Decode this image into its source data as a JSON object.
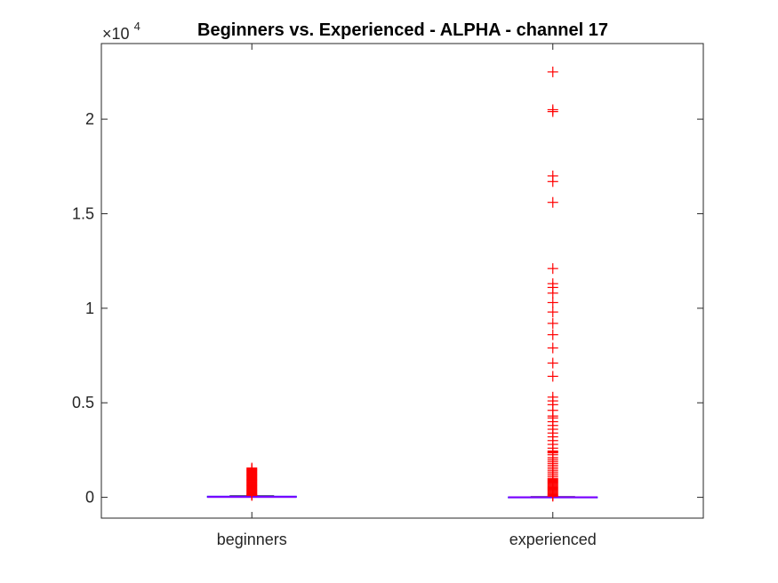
{
  "chart_data": {
    "type": "box",
    "title": "Beginners vs. Experienced - ALPHA - channel 17",
    "xlabel": "",
    "ylabel": "",
    "y_exponent_label": {
      "base": "×10",
      "power": "4"
    },
    "ylim": [
      -1100,
      24000
    ],
    "yticks": [
      0,
      5000,
      10000,
      15000,
      20000
    ],
    "ytick_labels": [
      "0",
      "0.5",
      "1",
      "1.5",
      "2"
    ],
    "categories": [
      "beginners",
      "experienced"
    ],
    "grid": false,
    "colors": {
      "outlier": "#ff0000",
      "box": "#ff0000",
      "median": "#7f00ff",
      "axis": "#262626"
    },
    "boxes": [
      {
        "name": "beginners",
        "q1": 0,
        "median": 20,
        "q3": 60,
        "whisker_low": 0,
        "whisker_high": 80,
        "outliers": [
          1550,
          1500,
          1460,
          1420,
          1380,
          1340,
          1300,
          1260,
          1220,
          1180,
          1140,
          1100,
          1060,
          1020,
          980,
          940,
          900,
          860,
          820,
          780,
          740,
          700,
          660,
          620,
          580,
          540,
          500,
          460,
          420,
          380,
          340,
          300,
          260,
          220,
          180,
          150,
          120,
          100
        ]
      },
      {
        "name": "experienced",
        "q1": 0,
        "median": 5,
        "q3": 20,
        "whisker_low": 0,
        "whisker_high": 40,
        "outliers": [
          22500,
          20500,
          20400,
          17000,
          16700,
          15600,
          12100,
          11300,
          11100,
          10800,
          10300,
          9800,
          9200,
          8600,
          7900,
          7100,
          6400,
          5300,
          5100,
          4900,
          4600,
          4300,
          4200,
          4000,
          3800,
          3600,
          3400,
          3200,
          3000,
          2800,
          2600,
          2450,
          2400,
          2350,
          2250,
          2100,
          2000,
          1900,
          1800,
          1700,
          1600,
          1500,
          1400,
          1300,
          1200,
          1100,
          1000,
          950,
          900,
          850,
          800,
          750,
          700,
          650,
          600,
          550,
          500,
          450,
          400,
          350,
          300,
          250,
          200,
          150,
          100,
          60
        ]
      }
    ]
  }
}
